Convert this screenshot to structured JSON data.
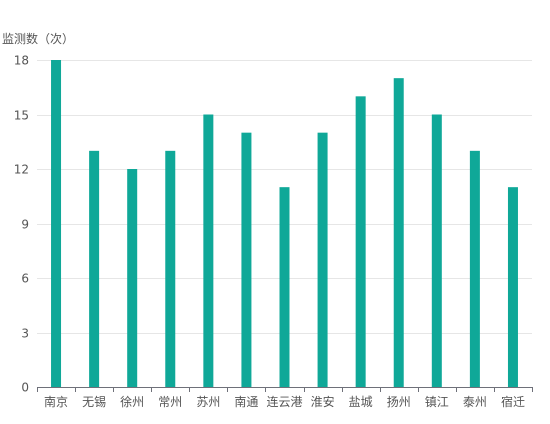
{
  "chart_data": {
    "type": "bar",
    "title": "",
    "xlabel": "",
    "ylabel": "监测数（次）",
    "categories": [
      "南京",
      "无锡",
      "徐州",
      "常州",
      "苏州",
      "南通",
      "连云港",
      "淮安",
      "盐城",
      "扬州",
      "镇江",
      "泰州",
      "宿迁"
    ],
    "values": [
      18,
      13,
      12,
      13,
      15,
      14,
      11,
      14,
      16,
      17,
      15,
      13,
      11
    ],
    "ylim": [
      0,
      18
    ],
    "yticks": [
      0,
      3,
      6,
      9,
      12,
      15,
      18
    ],
    "grid": true,
    "colors": {
      "bar": "#0fa898",
      "grid": "#e6e6e6",
      "axis": "#6e7079",
      "text": "#555555"
    }
  }
}
